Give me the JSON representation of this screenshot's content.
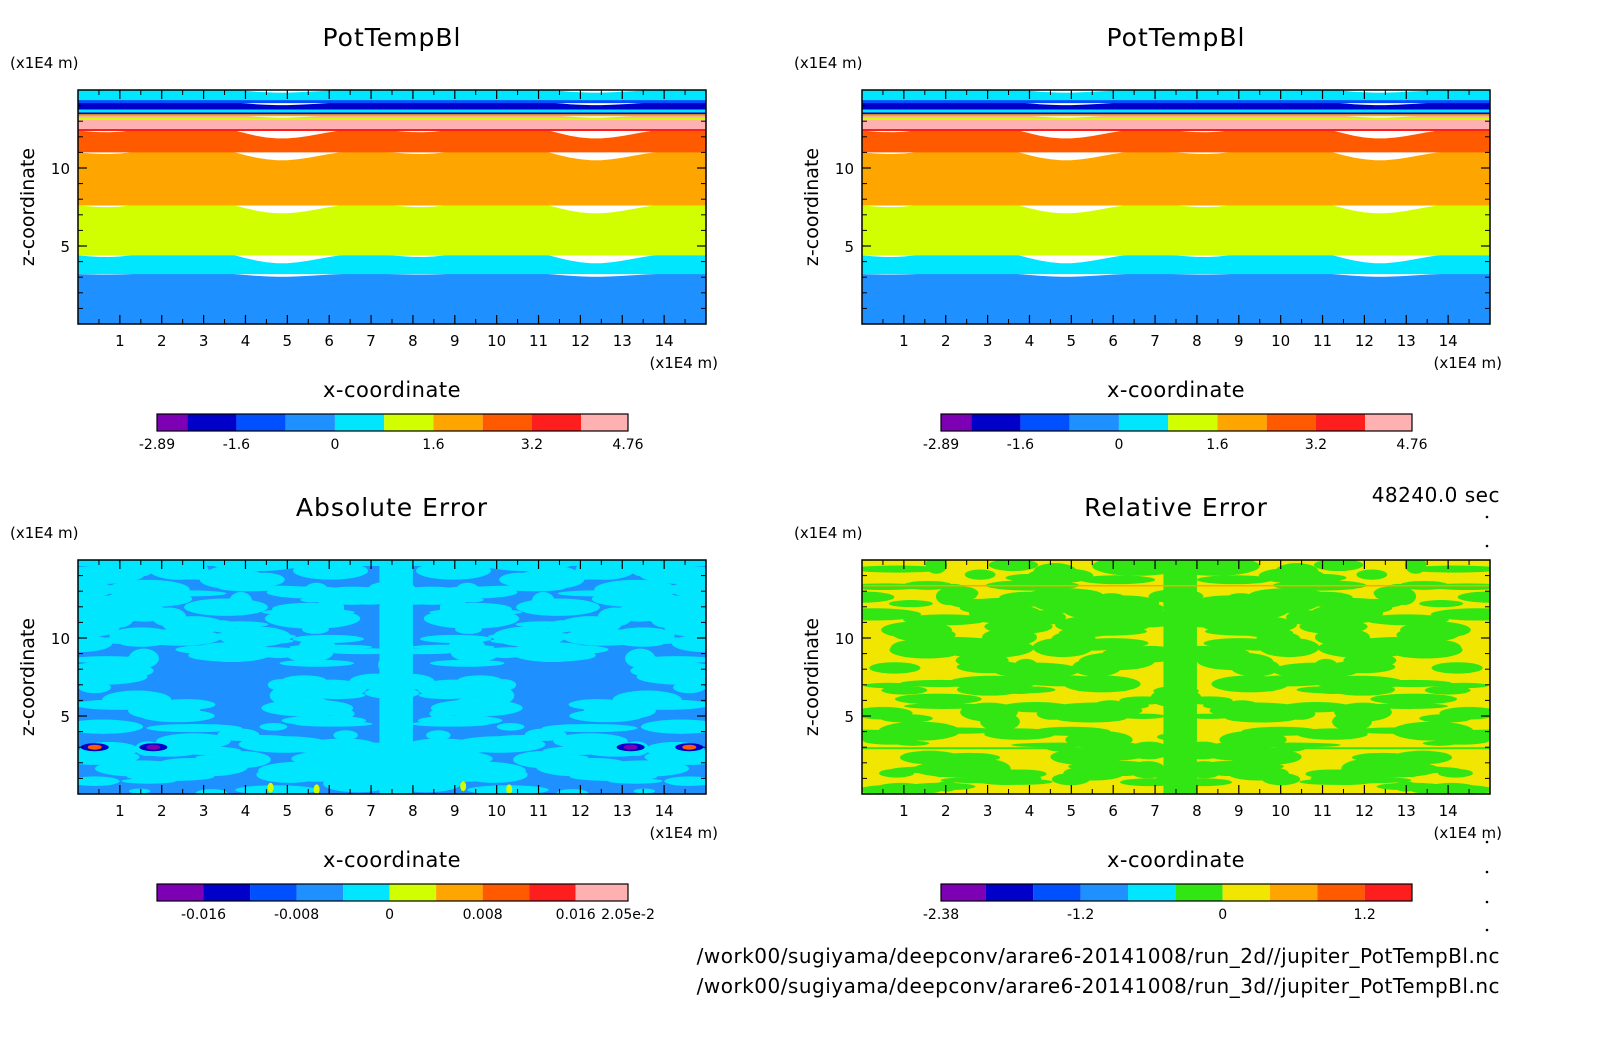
{
  "timestamp": "48240.0 sec",
  "files": [
    "/work00/sugiyama/deepconv/arare6-20141008/run_2d//jupiter_PotTempBl.nc",
    "/work00/sugiyama/deepconv/arare6-20141008/run_3d//jupiter_PotTempBl.nc"
  ],
  "chart_data": [
    {
      "type": "heatmap",
      "title": "PotTempBl",
      "xlabel": "x-coordinate",
      "ylabel": "z-coordinate",
      "x_unit": "(x1E4 m)",
      "y_unit": "(x1E4 m)",
      "xlim": [
        0,
        15
      ],
      "ylim": [
        0,
        15
      ],
      "xticks": [
        "1",
        "2",
        "3",
        "4",
        "5",
        "6",
        "7",
        "8",
        "9",
        "10",
        "11",
        "12",
        "13",
        "14"
      ],
      "yticks": [
        "5",
        "10"
      ],
      "colorbar": {
        "levels": [
          -2.89,
          -2.4,
          -1.6,
          -0.8,
          0,
          0.8,
          1.6,
          2.4,
          3.2,
          4.0,
          4.76
        ],
        "labels": [
          "-2.89",
          "-1.6",
          "0",
          "1.6",
          "3.2",
          "4.76"
        ],
        "label_values": [
          -2.89,
          -1.6,
          0,
          1.6,
          3.2,
          4.76
        ],
        "colors": [
          "#7d00b4",
          "#0000c8",
          "#0050ff",
          "#1e90ff",
          "#00e6ff",
          "#d2ff00",
          "#ffa500",
          "#ff5a00",
          "#ff1e1e",
          "#ffb0b0"
        ]
      },
      "bands": [
        {
          "z": [
            0,
            3.2
          ],
          "level": "#1e90ff"
        },
        {
          "z": [
            3.2,
            4.4
          ],
          "level": "#00e6ff"
        },
        {
          "z": [
            4.4,
            7.6
          ],
          "level": "#d2ff00"
        },
        {
          "z": [
            7.6,
            11.0
          ],
          "level": "#ffa500"
        },
        {
          "z": [
            11.0,
            12.4
          ],
          "level": "#ff5a00"
        },
        {
          "z": [
            12.4,
            13.4
          ],
          "level": "#ffb0b0"
        },
        {
          "z": [
            13.4,
            14.2
          ],
          "level": "#0000c8"
        },
        {
          "z": [
            14.2,
            15.0
          ],
          "level": "#00e6ff"
        }
      ]
    },
    {
      "type": "heatmap",
      "title": "PotTempBl",
      "xlabel": "x-coordinate",
      "ylabel": "z-coordinate",
      "x_unit": "(x1E4 m)",
      "y_unit": "(x1E4 m)",
      "xlim": [
        0,
        15
      ],
      "ylim": [
        0,
        15
      ],
      "xticks": [
        "1",
        "2",
        "3",
        "4",
        "5",
        "6",
        "7",
        "8",
        "9",
        "10",
        "11",
        "12",
        "13",
        "14"
      ],
      "yticks": [
        "5",
        "10"
      ],
      "colorbar": {
        "levels": [
          -2.89,
          -2.4,
          -1.6,
          -0.8,
          0,
          0.8,
          1.6,
          2.4,
          3.2,
          4.0,
          4.76
        ],
        "labels": [
          "-2.89",
          "-1.6",
          "0",
          "1.6",
          "3.2",
          "4.76"
        ],
        "label_values": [
          -2.89,
          -1.6,
          0,
          1.6,
          3.2,
          4.76
        ],
        "colors": [
          "#7d00b4",
          "#0000c8",
          "#0050ff",
          "#1e90ff",
          "#00e6ff",
          "#d2ff00",
          "#ffa500",
          "#ff5a00",
          "#ff1e1e",
          "#ffb0b0"
        ]
      },
      "bands": [
        {
          "z": [
            0,
            3.2
          ],
          "level": "#1e90ff"
        },
        {
          "z": [
            3.2,
            4.4
          ],
          "level": "#00e6ff"
        },
        {
          "z": [
            4.4,
            7.6
          ],
          "level": "#d2ff00"
        },
        {
          "z": [
            7.6,
            11.0
          ],
          "level": "#ffa500"
        },
        {
          "z": [
            11.0,
            12.4
          ],
          "level": "#ff5a00"
        },
        {
          "z": [
            12.4,
            13.4
          ],
          "level": "#ffb0b0"
        },
        {
          "z": [
            13.4,
            14.2
          ],
          "level": "#0000c8"
        },
        {
          "z": [
            14.2,
            15.0
          ],
          "level": "#00e6ff"
        }
      ]
    },
    {
      "type": "heatmap",
      "title": "Absolute Error",
      "xlabel": "x-coordinate",
      "ylabel": "z-coordinate",
      "x_unit": "(x1E4 m)",
      "y_unit": "(x1E4 m)",
      "xlim": [
        0,
        15
      ],
      "ylim": [
        0,
        15
      ],
      "xticks": [
        "1",
        "2",
        "3",
        "4",
        "5",
        "6",
        "7",
        "8",
        "9",
        "10",
        "11",
        "12",
        "13",
        "14"
      ],
      "yticks": [
        "5",
        "10"
      ],
      "colorbar": {
        "levels": [
          -0.02,
          -0.016,
          -0.012,
          -0.008,
          -0.004,
          0,
          0.004,
          0.008,
          0.012,
          0.016,
          0.0205
        ],
        "labels": [
          "-0.016",
          "-0.008",
          "0",
          "0.008",
          "0.016",
          "2.05e-2"
        ],
        "label_values": [
          -0.016,
          -0.008,
          0,
          0.008,
          0.016,
          0.0205
        ],
        "colors": [
          "#7d00b4",
          "#0000c8",
          "#0050ff",
          "#1e90ff",
          "#00e6ff",
          "#d2ff00",
          "#ffa500",
          "#ff5a00",
          "#ff1e1e",
          "#ffb0b0"
        ]
      },
      "background": "#1e90ff",
      "patches": "#00e6ff"
    },
    {
      "type": "heatmap",
      "title": "Relative Error",
      "xlabel": "x-coordinate",
      "ylabel": "z-coordinate",
      "x_unit": "(x1E4 m)",
      "y_unit": "(x1E4 m)",
      "xlim": [
        0,
        15
      ],
      "ylim": [
        0,
        15
      ],
      "xticks": [
        "1",
        "2",
        "3",
        "4",
        "5",
        "6",
        "7",
        "8",
        "9",
        "10",
        "11",
        "12",
        "13",
        "14"
      ],
      "yticks": [
        "5",
        "10"
      ],
      "colorbar": {
        "levels": [
          -2.38,
          -2.0,
          -1.6,
          -1.2,
          -0.8,
          -0.4,
          0,
          0.4,
          0.8,
          1.2,
          1.6
        ],
        "labels": [
          "-2.38",
          "-1.2",
          "0",
          "1.2"
        ],
        "label_values": [
          -2.38,
          -1.2,
          0,
          1.2
        ],
        "colors": [
          "#7d00b4",
          "#0000c8",
          "#0050ff",
          "#1e90ff",
          "#00e6ff",
          "#32e614",
          "#f0e600",
          "#ffa500",
          "#ff5a00",
          "#ff1e1e"
        ]
      },
      "background": "#f0e600",
      "patches": "#32e614"
    }
  ]
}
